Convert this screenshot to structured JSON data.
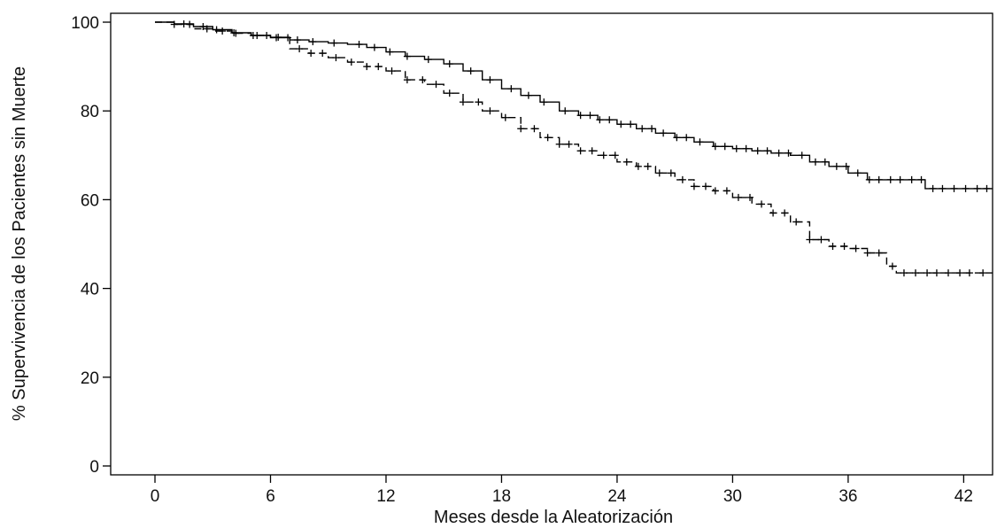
{
  "chart_data": {
    "type": "line",
    "title": "",
    "xlabel": "Meses desde la Aleatorización",
    "ylabel": "% Supervivencia de los Pacientes sin Muerte",
    "xlim": [
      -2.3,
      43.5
    ],
    "ylim": [
      -2,
      102
    ],
    "xticks": [
      0,
      6,
      12,
      18,
      24,
      30,
      36,
      42
    ],
    "yticks": [
      0,
      20,
      40,
      60,
      80,
      100
    ],
    "x_tick_labels": [
      "0",
      "6",
      "12",
      "18",
      "24",
      "30",
      "36",
      "42"
    ],
    "y_tick_labels": [
      "0",
      "20",
      "40",
      "60",
      "80",
      "100"
    ],
    "grid": false,
    "legend": "none",
    "series": [
      {
        "line_style": "solid",
        "color": "#000000",
        "step_points": [
          [
            0,
            100
          ],
          [
            1,
            99.6
          ],
          [
            2,
            99
          ],
          [
            3,
            98.3
          ],
          [
            4,
            97.6
          ],
          [
            5,
            97
          ],
          [
            6,
            96.6
          ],
          [
            7,
            96
          ],
          [
            8,
            95.6
          ],
          [
            9,
            95.3
          ],
          [
            10,
            95
          ],
          [
            11,
            94.3
          ],
          [
            12,
            93.3
          ],
          [
            13,
            92.3
          ],
          [
            14,
            91.6
          ],
          [
            15,
            90.6
          ],
          [
            16,
            89
          ],
          [
            17,
            87
          ],
          [
            18,
            85
          ],
          [
            19,
            83.5
          ],
          [
            20,
            82
          ],
          [
            21,
            80
          ],
          [
            22,
            79
          ],
          [
            23,
            78
          ],
          [
            24,
            77
          ],
          [
            25,
            76
          ],
          [
            26,
            75
          ],
          [
            27,
            74
          ],
          [
            28,
            73
          ],
          [
            29,
            72
          ],
          [
            30,
            71.5
          ],
          [
            31,
            71
          ],
          [
            32,
            70.5
          ],
          [
            33,
            70
          ],
          [
            34,
            68.5
          ],
          [
            35,
            67.5
          ],
          [
            36,
            66
          ],
          [
            37,
            64.5
          ],
          [
            38,
            64.5
          ],
          [
            39,
            64.5
          ],
          [
            40,
            62.5
          ],
          [
            43.5,
            62.5
          ]
        ],
        "censor_x": [
          1.5,
          2.5,
          3.2,
          4.1,
          5.3,
          6.4,
          7.4,
          8.2,
          9.3,
          10.6,
          11.4,
          12.2,
          13.1,
          14.2,
          15.3,
          16.4,
          17.4,
          18.5,
          19.4,
          20.2,
          21.3,
          22.1,
          22.6,
          23.1,
          23.6,
          24.2,
          24.7,
          25.3,
          25.8,
          26.4,
          27.1,
          27.6,
          28.3,
          29.1,
          29.6,
          30.2,
          30.7,
          31.3,
          31.8,
          32.4,
          32.9,
          33.6,
          34.3,
          34.8,
          35.4,
          35.9,
          36.5,
          37.1,
          37.6,
          38.2,
          38.7,
          39.3,
          39.8,
          40.4,
          40.9,
          41.5,
          42.1,
          42.7,
          43.2
        ]
      },
      {
        "line_style": "dashed",
        "color": "#000000",
        "step_points": [
          [
            0,
            100
          ],
          [
            1,
            99.5
          ],
          [
            2,
            98.5
          ],
          [
            3,
            98
          ],
          [
            4,
            97.5
          ],
          [
            5,
            97
          ],
          [
            6,
            96.5
          ],
          [
            7,
            94
          ],
          [
            8,
            93
          ],
          [
            9,
            92
          ],
          [
            10,
            91
          ],
          [
            11,
            90
          ],
          [
            12,
            89
          ],
          [
            13,
            87
          ],
          [
            14,
            86
          ],
          [
            15,
            84
          ],
          [
            16,
            82
          ],
          [
            17,
            80
          ],
          [
            18,
            78.5
          ],
          [
            19,
            76
          ],
          [
            20,
            74
          ],
          [
            21,
            72.5
          ],
          [
            22,
            71
          ],
          [
            23,
            70
          ],
          [
            24,
            68.5
          ],
          [
            25,
            67.5
          ],
          [
            26,
            66
          ],
          [
            27,
            64.5
          ],
          [
            28,
            63
          ],
          [
            29,
            62
          ],
          [
            30,
            60.5
          ],
          [
            31,
            59
          ],
          [
            32,
            57
          ],
          [
            33,
            55
          ],
          [
            34,
            51
          ],
          [
            35,
            49.5
          ],
          [
            36,
            49
          ],
          [
            37,
            48
          ],
          [
            38,
            45
          ],
          [
            38.5,
            43.5
          ],
          [
            43.5,
            43.5
          ]
        ],
        "censor_x": [
          1,
          1.8,
          2.7,
          3.5,
          4.2,
          5.1,
          5.8,
          6.3,
          6.9,
          7.5,
          8.1,
          8.7,
          9.4,
          10.2,
          11,
          11.6,
          12.3,
          13.1,
          13.9,
          14.6,
          15.3,
          16,
          16.8,
          17.4,
          18.2,
          19,
          19.7,
          20.4,
          21,
          21.5,
          22.1,
          22.7,
          23.3,
          23.9,
          24.5,
          25.1,
          25.6,
          26.2,
          26.8,
          27.4,
          28,
          28.6,
          29.1,
          29.7,
          30.3,
          30.9,
          31.5,
          32.1,
          32.7,
          33.3,
          34,
          34.6,
          35.2,
          35.8,
          36.4,
          37,
          37.6,
          38.3,
          38.9,
          39.5,
          40.1,
          40.6,
          41.2,
          41.8,
          42.3,
          43
        ]
      }
    ]
  }
}
